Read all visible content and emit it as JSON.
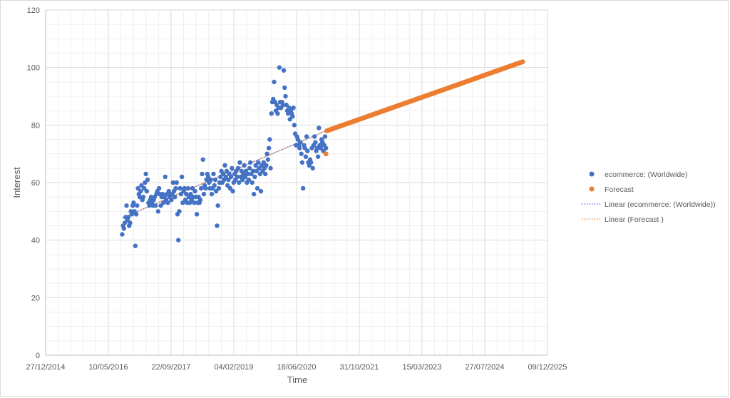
{
  "chart_data": {
    "type": "scatter",
    "xlabel": "Time",
    "ylabel": "Interest",
    "ylim": [
      0,
      120
    ],
    "yticks": [
      "0",
      "20",
      "40",
      "60",
      "80",
      "100",
      "120"
    ],
    "xticks": [
      "27/12/2014",
      "10/05/2016",
      "22/09/2017",
      "04/02/2019",
      "18/06/2020",
      "31/10/2021",
      "15/03/2023",
      "27/07/2024",
      "09/12/2025"
    ],
    "xlim": [
      "2014-12-27",
      "2025-12-09"
    ],
    "grid": true,
    "legend_position": "right",
    "legend": [
      {
        "label": "ecommerce: (Worldwide)",
        "kind": "marker",
        "color": "#4472c4"
      },
      {
        "label": "Forecast",
        "kind": "marker",
        "color": "#ed7d31"
      },
      {
        "label": "Linear (ecommerce: (Worldwide))",
        "kind": "dotted-line",
        "color": "#4472c4"
      },
      {
        "label": "Linear (Forecast )",
        "kind": "dotted-line",
        "color": "#ed7d31"
      }
    ],
    "series": [
      {
        "name": "ecommerce: (Worldwide)",
        "color": "#4472c4",
        "points": [
          [
            "2016-08-28",
            42
          ],
          [
            "2016-09-04",
            45
          ],
          [
            "2016-09-11",
            44
          ],
          [
            "2016-09-18",
            46
          ],
          [
            "2016-09-25",
            48
          ],
          [
            "2016-10-02",
            52
          ],
          [
            "2016-10-09",
            47
          ],
          [
            "2016-10-16",
            48
          ],
          [
            "2016-10-23",
            45
          ],
          [
            "2016-10-30",
            46
          ],
          [
            "2016-11-06",
            50
          ],
          [
            "2016-11-13",
            49
          ],
          [
            "2016-11-20",
            52
          ],
          [
            "2016-11-27",
            53
          ],
          [
            "2016-12-04",
            50
          ],
          [
            "2016-12-11",
            38
          ],
          [
            "2016-12-18",
            49
          ],
          [
            "2016-12-25",
            52
          ],
          [
            "2017-01-01",
            58
          ],
          [
            "2017-01-08",
            56
          ],
          [
            "2017-01-15",
            55
          ],
          [
            "2017-01-22",
            57
          ],
          [
            "2017-01-29",
            59
          ],
          [
            "2017-02-05",
            54
          ],
          [
            "2017-02-12",
            55
          ],
          [
            "2017-02-19",
            58
          ],
          [
            "2017-02-26",
            60
          ],
          [
            "2017-03-05",
            63
          ],
          [
            "2017-03-12",
            57
          ],
          [
            "2017-03-19",
            61
          ],
          [
            "2017-03-26",
            53
          ],
          [
            "2017-04-02",
            52
          ],
          [
            "2017-04-09",
            54
          ],
          [
            "2017-04-16",
            55
          ],
          [
            "2017-04-23",
            53
          ],
          [
            "2017-04-30",
            52
          ],
          [
            "2017-05-07",
            54
          ],
          [
            "2017-05-14",
            55
          ],
          [
            "2017-05-21",
            52
          ],
          [
            "2017-05-28",
            56
          ],
          [
            "2017-06-04",
            57
          ],
          [
            "2017-06-11",
            50
          ],
          [
            "2017-06-18",
            58
          ],
          [
            "2017-06-25",
            56
          ],
          [
            "2017-07-02",
            52
          ],
          [
            "2017-07-09",
            55
          ],
          [
            "2017-07-16",
            56
          ],
          [
            "2017-07-23",
            53
          ],
          [
            "2017-07-30",
            55
          ],
          [
            "2017-08-06",
            62
          ],
          [
            "2017-08-13",
            54
          ],
          [
            "2017-08-20",
            56
          ],
          [
            "2017-08-27",
            53
          ],
          [
            "2017-09-03",
            57
          ],
          [
            "2017-09-10",
            55
          ],
          [
            "2017-09-17",
            56
          ],
          [
            "2017-09-24",
            54
          ],
          [
            "2017-10-01",
            56
          ],
          [
            "2017-10-08",
            60
          ],
          [
            "2017-10-15",
            57
          ],
          [
            "2017-10-22",
            55
          ],
          [
            "2017-10-29",
            58
          ],
          [
            "2017-11-05",
            60
          ],
          [
            "2017-11-12",
            49
          ],
          [
            "2017-11-19",
            40
          ],
          [
            "2017-11-26",
            50
          ],
          [
            "2017-12-03",
            58
          ],
          [
            "2017-12-10",
            56
          ],
          [
            "2017-12-17",
            62
          ],
          [
            "2017-12-24",
            53
          ],
          [
            "2017-12-31",
            57
          ],
          [
            "2018-01-07",
            58
          ],
          [
            "2018-01-14",
            54
          ],
          [
            "2018-01-21",
            56
          ],
          [
            "2018-01-28",
            53
          ],
          [
            "2018-02-04",
            58
          ],
          [
            "2018-02-11",
            55
          ],
          [
            "2018-02-18",
            53
          ],
          [
            "2018-02-25",
            56
          ],
          [
            "2018-03-04",
            54
          ],
          [
            "2018-03-11",
            58
          ],
          [
            "2018-03-18",
            55
          ],
          [
            "2018-03-25",
            53
          ],
          [
            "2018-04-01",
            57
          ],
          [
            "2018-04-08",
            55
          ],
          [
            "2018-04-15",
            49
          ],
          [
            "2018-04-22",
            53
          ],
          [
            "2018-04-29",
            55
          ],
          [
            "2018-05-06",
            53
          ],
          [
            "2018-05-13",
            54
          ],
          [
            "2018-05-20",
            58
          ],
          [
            "2018-05-27",
            63
          ],
          [
            "2018-06-03",
            68
          ],
          [
            "2018-06-10",
            56
          ],
          [
            "2018-06-17",
            59
          ],
          [
            "2018-06-24",
            58
          ],
          [
            "2018-07-01",
            61
          ],
          [
            "2018-07-08",
            63
          ],
          [
            "2018-07-15",
            62
          ],
          [
            "2018-07-22",
            60
          ],
          [
            "2018-07-29",
            58
          ],
          [
            "2018-08-05",
            61
          ],
          [
            "2018-08-12",
            56
          ],
          [
            "2018-08-19",
            58
          ],
          [
            "2018-08-26",
            63
          ],
          [
            "2018-09-02",
            59
          ],
          [
            "2018-09-09",
            61
          ],
          [
            "2018-09-16",
            57
          ],
          [
            "2018-09-23",
            45
          ],
          [
            "2018-09-30",
            52
          ],
          [
            "2018-10-07",
            58
          ],
          [
            "2018-10-14",
            60
          ],
          [
            "2018-10-21",
            62
          ],
          [
            "2018-10-28",
            64
          ],
          [
            "2018-11-04",
            60
          ],
          [
            "2018-11-11",
            63
          ],
          [
            "2018-11-18",
            61
          ],
          [
            "2018-11-25",
            66
          ],
          [
            "2018-12-02",
            62
          ],
          [
            "2018-12-09",
            64
          ],
          [
            "2018-12-16",
            59
          ],
          [
            "2018-12-23",
            61
          ],
          [
            "2018-12-30",
            63
          ],
          [
            "2019-01-06",
            58
          ],
          [
            "2019-01-13",
            62
          ],
          [
            "2019-01-20",
            65
          ],
          [
            "2019-01-27",
            57
          ],
          [
            "2019-02-03",
            60
          ],
          [
            "2019-02-10",
            63
          ],
          [
            "2019-02-17",
            61
          ],
          [
            "2019-02-24",
            64
          ],
          [
            "2019-03-03",
            62
          ],
          [
            "2019-03-10",
            65
          ],
          [
            "2019-03-17",
            60
          ],
          [
            "2019-03-24",
            67
          ],
          [
            "2019-03-31",
            62
          ],
          [
            "2019-04-07",
            64
          ],
          [
            "2019-04-14",
            61
          ],
          [
            "2019-04-21",
            63
          ],
          [
            "2019-04-28",
            66
          ],
          [
            "2019-05-05",
            62
          ],
          [
            "2019-05-12",
            64
          ],
          [
            "2019-05-19",
            60
          ],
          [
            "2019-05-26",
            63
          ],
          [
            "2019-06-02",
            61
          ],
          [
            "2019-06-09",
            65
          ],
          [
            "2019-06-16",
            67
          ],
          [
            "2019-06-23",
            63
          ],
          [
            "2019-06-30",
            60
          ],
          [
            "2019-07-07",
            64
          ],
          [
            "2019-07-14",
            56
          ],
          [
            "2019-07-21",
            62
          ],
          [
            "2019-07-28",
            66
          ],
          [
            "2019-08-04",
            64
          ],
          [
            "2019-08-11",
            58
          ],
          [
            "2019-08-18",
            67
          ],
          [
            "2019-08-25",
            65
          ],
          [
            "2019-09-01",
            63
          ],
          [
            "2019-09-08",
            57
          ],
          [
            "2019-09-15",
            66
          ],
          [
            "2019-09-22",
            64
          ],
          [
            "2019-09-29",
            67
          ],
          [
            "2019-10-06",
            65
          ],
          [
            "2019-10-13",
            63
          ],
          [
            "2019-10-20",
            66
          ],
          [
            "2019-10-27",
            70
          ],
          [
            "2019-11-03",
            68
          ],
          [
            "2019-11-10",
            72
          ],
          [
            "2019-11-17",
            75
          ],
          [
            "2019-11-24",
            65
          ],
          [
            "2019-12-01",
            84
          ],
          [
            "2019-12-08",
            88
          ],
          [
            "2019-12-15",
            89
          ],
          [
            "2019-12-22",
            95
          ],
          [
            "2019-12-29",
            88
          ],
          [
            "2020-01-05",
            85
          ],
          [
            "2020-01-12",
            87
          ],
          [
            "2020-01-19",
            84
          ],
          [
            "2020-01-26",
            86
          ],
          [
            "2020-02-02",
            100
          ],
          [
            "2020-02-09",
            88
          ],
          [
            "2020-02-16",
            86
          ],
          [
            "2020-02-23",
            88
          ],
          [
            "2020-03-01",
            87
          ],
          [
            "2020-03-08",
            99
          ],
          [
            "2020-03-15",
            93
          ],
          [
            "2020-03-22",
            90
          ],
          [
            "2020-03-29",
            87
          ],
          [
            "2020-04-05",
            85
          ],
          [
            "2020-04-12",
            84
          ],
          [
            "2020-04-19",
            86
          ],
          [
            "2020-04-26",
            82
          ],
          [
            "2020-05-03",
            85
          ],
          [
            "2020-05-10",
            84
          ],
          [
            "2020-05-17",
            83
          ],
          [
            "2020-05-24",
            86
          ],
          [
            "2020-05-31",
            80
          ],
          [
            "2020-06-07",
            77
          ],
          [
            "2020-06-14",
            73
          ],
          [
            "2020-06-21",
            76
          ],
          [
            "2020-06-28",
            75
          ],
          [
            "2020-07-05",
            73
          ],
          [
            "2020-07-12",
            72
          ],
          [
            "2020-07-19",
            74
          ],
          [
            "2020-07-26",
            70
          ],
          [
            "2020-08-02",
            67
          ],
          [
            "2020-08-09",
            58
          ],
          [
            "2020-08-16",
            73
          ],
          [
            "2020-08-23",
            72
          ],
          [
            "2020-08-30",
            69
          ],
          [
            "2020-09-06",
            76
          ],
          [
            "2020-09-13",
            71
          ],
          [
            "2020-09-20",
            67
          ],
          [
            "2020-09-27",
            66
          ],
          [
            "2020-10-04",
            68
          ],
          [
            "2020-10-11",
            67
          ],
          [
            "2020-10-18",
            72
          ],
          [
            "2020-10-25",
            65
          ],
          [
            "2020-11-01",
            73
          ],
          [
            "2020-11-08",
            76
          ],
          [
            "2020-11-15",
            74
          ],
          [
            "2020-11-22",
            71
          ],
          [
            "2020-11-29",
            72
          ],
          [
            "2020-12-06",
            69
          ],
          [
            "2020-12-13",
            79
          ],
          [
            "2020-12-20",
            73
          ],
          [
            "2020-12-27",
            72
          ],
          [
            "2021-01-03",
            75
          ],
          [
            "2021-01-10",
            74
          ],
          [
            "2021-01-17",
            71
          ],
          [
            "2021-01-24",
            73
          ],
          [
            "2021-01-31",
            76
          ],
          [
            "2021-02-07",
            72
          ]
        ]
      },
      {
        "name": "Forecast",
        "color": "#ed7d31",
        "points": [
          [
            "2021-02-07",
            70
          ],
          [
            "2021-02-14",
            78
          ],
          [
            "2025-05-25",
            102
          ]
        ],
        "line_segment_note": "continuous weekly forecast from 78 rising linearly to 102"
      }
    ],
    "trendlines": [
      {
        "label": "Linear (ecommerce: (Worldwide))",
        "color": "#4472c4",
        "from": [
          "2016-08-28",
          47.7
        ],
        "to": [
          "2021-02-07",
          78.0
        ]
      },
      {
        "label": "Linear (Forecast )",
        "color": "#ed7d31",
        "from": [
          "2016-08-28",
          47.7
        ],
        "to": [
          "2021-02-07",
          78.0
        ]
      }
    ]
  }
}
